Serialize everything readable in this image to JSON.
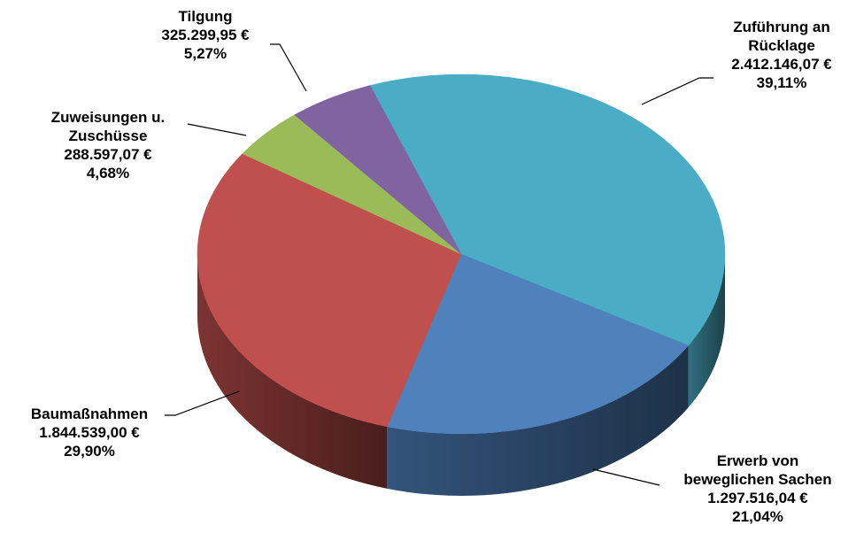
{
  "chart_data": {
    "type": "pie",
    "title": "",
    "style": "3d",
    "slices": [
      {
        "name": "Zuführung an Rücklage",
        "name_lines": [
          "Zuführung an",
          "Rücklage"
        ],
        "value": 2412146.07,
        "value_label": "2.412.146,07 €",
        "percent_label": "39,11%",
        "color": "#4BACC6"
      },
      {
        "name": "Erwerb von beweglichen Sachen",
        "name_lines": [
          "Erwerb von",
          "beweglichen Sachen"
        ],
        "value": 1297516.04,
        "value_label": "1.297.516,04 €",
        "percent_label": "21,04%",
        "color": "#4F81BD"
      },
      {
        "name": "Baumaßnahmen",
        "name_lines": [
          "Baumaßnahmen"
        ],
        "value": 1844539.0,
        "value_label": "1.844.539,00 €",
        "percent_label": "29,90%",
        "color": "#C0504D"
      },
      {
        "name": "Zuweisungen u. Zuschüsse",
        "name_lines": [
          "Zuweisungen u.",
          "Zuschüsse"
        ],
        "value": 288597.07,
        "value_label": "288.597,07 €",
        "percent_label": "4,68%",
        "color": "#9BBB59"
      },
      {
        "name": "Tilgung",
        "name_lines": [
          "Tilgung"
        ],
        "value": 325299.95,
        "value_label": "325.299,95 €",
        "percent_label": "5,27%",
        "color": "#8064A2"
      }
    ]
  }
}
